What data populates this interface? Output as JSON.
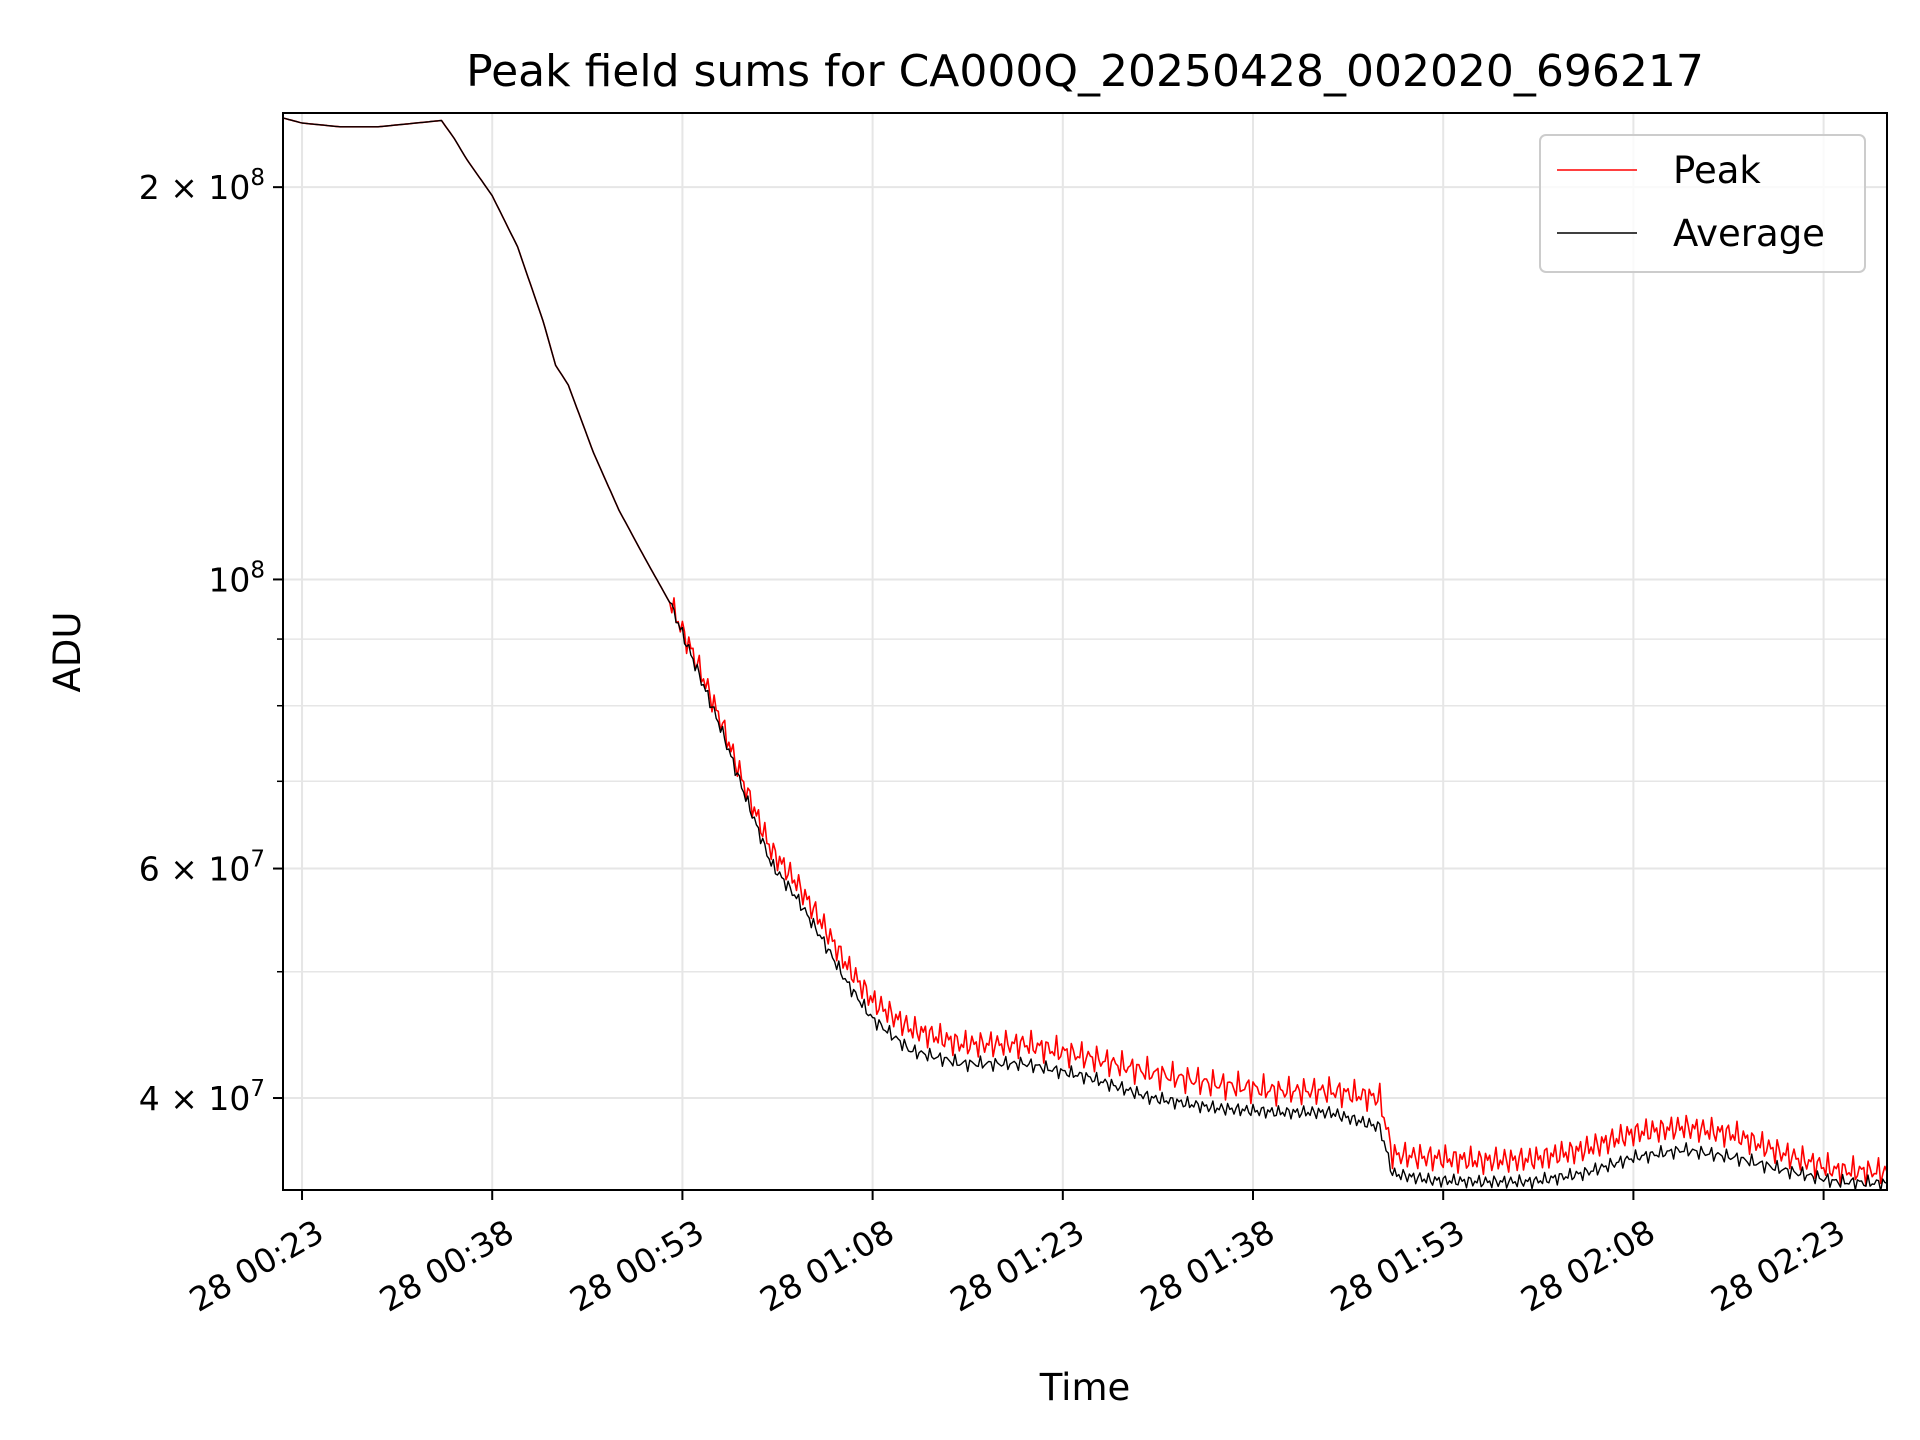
{
  "chart_data": {
    "type": "line",
    "title": "Peak field sums for CA000Q_20250428_002020_696217",
    "xlabel": "Time",
    "ylabel": "ADU",
    "y_scale": "log",
    "xlim": [
      "28 00:21:30",
      "28 02:28:00"
    ],
    "ylim": [
      34000000,
      228000000
    ],
    "grid": true,
    "legend_position": "upper right",
    "x_ticks": [
      "28 00:23",
      "28 00:38",
      "28 00:53",
      "28 01:08",
      "28 01:23",
      "28 01:38",
      "28 01:53",
      "28 02:08",
      "28 02:23"
    ],
    "y_ticks": [
      {
        "value": 40000000,
        "base": "4",
        "sep": " × ",
        "mant": "10",
        "exp": "7"
      },
      {
        "value": 60000000,
        "base": "6",
        "sep": " × ",
        "mant": "10",
        "exp": "7"
      },
      {
        "value": 100000000,
        "base": "",
        "sep": "",
        "mant": "10",
        "exp": "8"
      },
      {
        "value": 200000000,
        "base": "2",
        "sep": " × ",
        "mant": "10",
        "exp": "8"
      }
    ],
    "y_minor_ticks": [
      50000000,
      70000000,
      80000000,
      90000000
    ],
    "series": [
      {
        "name": "Peak",
        "color": "#ff0000",
        "x": [
          "28 00:21:30",
          "28 00:23",
          "28 00:26",
          "28 00:29",
          "28 00:32",
          "28 00:34",
          "28 00:35",
          "28 00:36",
          "28 00:38",
          "28 00:40",
          "28 00:42",
          "28 00:43",
          "28 00:44",
          "28 00:46",
          "28 00:48",
          "28 00:50",
          "28 00:52",
          "28 00:54",
          "28 00:56",
          "28 00:58",
          "28 01:00",
          "28 01:02",
          "28 01:04",
          "28 01:06",
          "28 01:08",
          "28 01:11",
          "28 01:15",
          "28 01:20",
          "28 01:25",
          "28 01:30",
          "28 01:35",
          "28 01:40",
          "28 01:44",
          "28 01:48",
          "28 01:49",
          "28 01:52",
          "28 01:56",
          "28 02:00",
          "28 02:04",
          "28 02:08",
          "28 02:12",
          "28 02:16",
          "28 02:20",
          "28 02:24",
          "28 02:28"
        ],
        "y": [
          226000000,
          224000000,
          222500000,
          222500000,
          224000000,
          225000000,
          218000000,
          210000000,
          197000000,
          180000000,
          158000000,
          146000000,
          141000000,
          125000000,
          113000000,
          104000000,
          96000000,
          87000000,
          78000000,
          69000000,
          62000000,
          58500000,
          54500000,
          50500000,
          47500000,
          45200000,
          44000000,
          44000000,
          43000000,
          41800000,
          41000000,
          40500000,
          40500000,
          40000000,
          36200000,
          36000000,
          35800000,
          35900000,
          36500000,
          37600000,
          38000000,
          37500000,
          36200000,
          35200000,
          35100000
        ]
      },
      {
        "name": "Average",
        "color": "#000000",
        "x": [
          "28 00:21:30",
          "28 00:23",
          "28 00:26",
          "28 00:29",
          "28 00:32",
          "28 00:34",
          "28 00:35",
          "28 00:36",
          "28 00:38",
          "28 00:40",
          "28 00:42",
          "28 00:43",
          "28 00:44",
          "28 00:46",
          "28 00:48",
          "28 00:50",
          "28 00:52",
          "28 00:54",
          "28 00:56",
          "28 00:58",
          "28 01:00",
          "28 01:02",
          "28 01:04",
          "28 01:06",
          "28 01:08",
          "28 01:11",
          "28 01:15",
          "28 01:20",
          "28 01:25",
          "28 01:30",
          "28 01:35",
          "28 01:40",
          "28 01:44",
          "28 01:48",
          "28 01:49",
          "28 01:52",
          "28 01:56",
          "28 02:00",
          "28 02:04",
          "28 02:08",
          "28 02:12",
          "28 02:16",
          "28 02:20",
          "28 02:24",
          "28 02:28"
        ],
        "y": [
          226000000,
          224000000,
          222500000,
          222500000,
          224000000,
          225000000,
          218000000,
          210000000,
          197000000,
          180000000,
          158000000,
          146000000,
          141000000,
          125000000,
          113000000,
          104000000,
          96000000,
          86000000,
          77000000,
          68000000,
          60500000,
          57000000,
          53000000,
          49000000,
          46000000,
          43500000,
          42500000,
          42500000,
          41500000,
          40000000,
          39300000,
          39000000,
          39000000,
          38000000,
          35000000,
          34600000,
          34500000,
          34500000,
          35000000,
          36000000,
          36500000,
          36000000,
          35200000,
          34500000,
          34400000
        ]
      }
    ]
  }
}
